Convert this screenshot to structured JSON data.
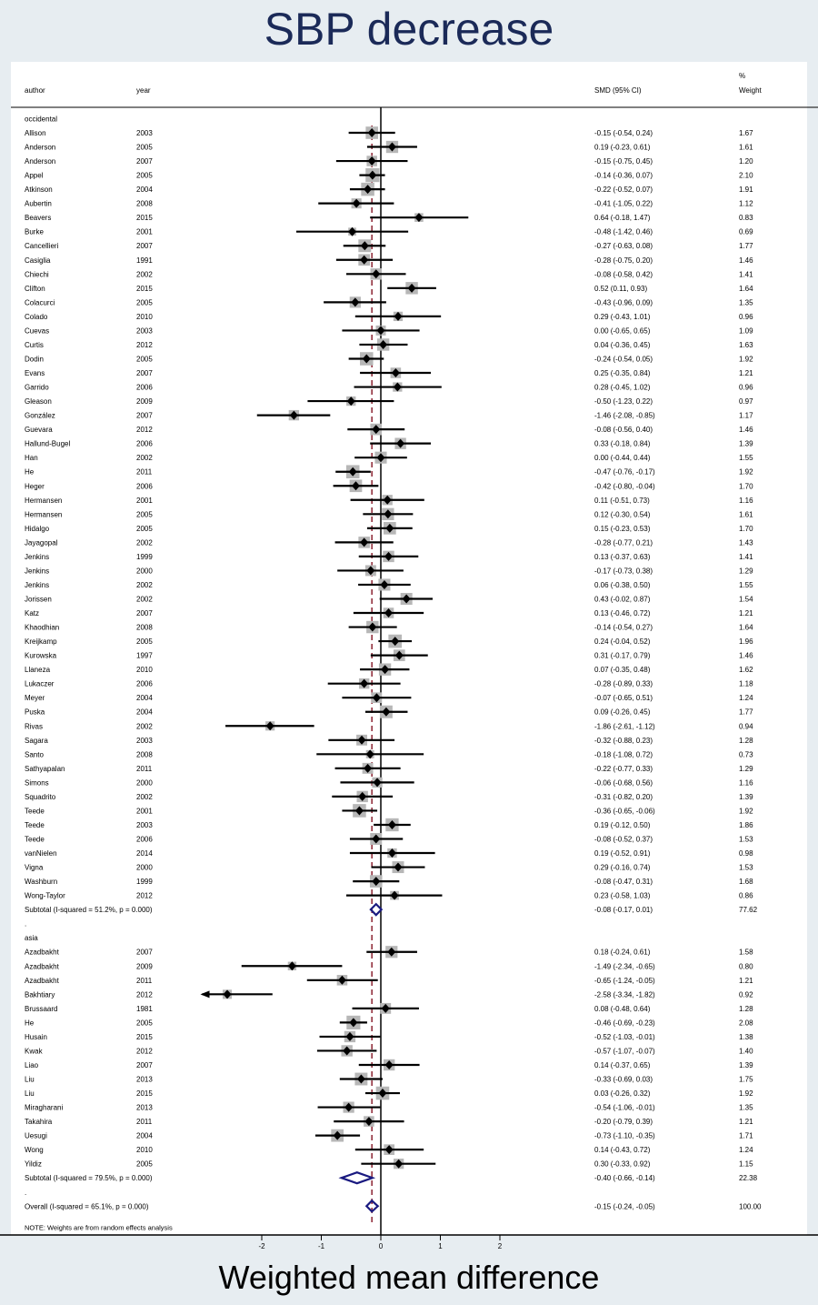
{
  "title": "SBP decrease",
  "xlabel": "Weighted mean difference",
  "header": {
    "author": "author",
    "year": "year",
    "ci": "SMD (95% CI)",
    "pct": "%",
    "weight": "Weight"
  },
  "note": "NOTE: Weights are from random effects analysis",
  "colors": {
    "background": "#e7edf1",
    "panel": "#ffffff",
    "box": "#b7b7b7",
    "diamond": "#1a1a80",
    "overall_line": "#8b2332",
    "text": "#000000"
  },
  "chart_data": {
    "type": "forest",
    "xlim": [
      -3,
      2
    ],
    "xticks": [
      -2,
      -1,
      0,
      1,
      2
    ],
    "xtick_labels": [
      "-2",
      "-1",
      "0",
      "1",
      "2"
    ],
    "null_line": 0,
    "overall_line": -0.15,
    "groups": [
      {
        "name": "occidental",
        "studies": [
          {
            "author": "Allison",
            "year": "2003",
            "est": -0.15,
            "lo": -0.54,
            "hi": 0.24,
            "ci": "-0.15 (-0.54, 0.24)",
            "weight": "1.67"
          },
          {
            "author": "Anderson",
            "year": "2005",
            "est": 0.19,
            "lo": -0.23,
            "hi": 0.61,
            "ci": "0.19 (-0.23, 0.61)",
            "weight": "1.61"
          },
          {
            "author": "Anderson",
            "year": "2007",
            "est": -0.15,
            "lo": -0.75,
            "hi": 0.45,
            "ci": "-0.15 (-0.75, 0.45)",
            "weight": "1.20"
          },
          {
            "author": "Appel",
            "year": "2005",
            "est": -0.14,
            "lo": -0.36,
            "hi": 0.07,
            "ci": "-0.14 (-0.36, 0.07)",
            "weight": "2.10"
          },
          {
            "author": "Atkinson",
            "year": "2004",
            "est": -0.22,
            "lo": -0.52,
            "hi": 0.07,
            "ci": "-0.22 (-0.52, 0.07)",
            "weight": "1.91"
          },
          {
            "author": "Aubertin",
            "year": "2008",
            "est": -0.41,
            "lo": -1.05,
            "hi": 0.22,
            "ci": "-0.41 (-1.05, 0.22)",
            "weight": "1.12"
          },
          {
            "author": "Beavers",
            "year": "2015",
            "est": 0.64,
            "lo": -0.18,
            "hi": 1.47,
            "ci": "0.64 (-0.18, 1.47)",
            "weight": "0.83"
          },
          {
            "author": "Burke",
            "year": "2001",
            "est": -0.48,
            "lo": -1.42,
            "hi": 0.46,
            "ci": "-0.48 (-1.42, 0.46)",
            "weight": "0.69"
          },
          {
            "author": "Cancellieri",
            "year": "2007",
            "est": -0.27,
            "lo": -0.63,
            "hi": 0.08,
            "ci": "-0.27 (-0.63, 0.08)",
            "weight": "1.77"
          },
          {
            "author": "Casiglia",
            "year": "1991",
            "est": -0.28,
            "lo": -0.75,
            "hi": 0.2,
            "ci": "-0.28 (-0.75, 0.20)",
            "weight": "1.46"
          },
          {
            "author": "Chiechi",
            "year": "2002",
            "est": -0.08,
            "lo": -0.58,
            "hi": 0.42,
            "ci": "-0.08 (-0.58, 0.42)",
            "weight": "1.41"
          },
          {
            "author": "Clifton",
            "year": "2015",
            "est": 0.52,
            "lo": 0.11,
            "hi": 0.93,
            "ci": "0.52 (0.11, 0.93)",
            "weight": "1.64"
          },
          {
            "author": "Colacurci",
            "year": "2005",
            "est": -0.43,
            "lo": -0.96,
            "hi": 0.09,
            "ci": "-0.43 (-0.96, 0.09)",
            "weight": "1.35"
          },
          {
            "author": "Colado",
            "year": "2010",
            "est": 0.29,
            "lo": -0.43,
            "hi": 1.01,
            "ci": "0.29 (-0.43, 1.01)",
            "weight": "0.96"
          },
          {
            "author": "Cuevas",
            "year": "2003",
            "est": 0.0,
            "lo": -0.65,
            "hi": 0.65,
            "ci": "0.00 (-0.65, 0.65)",
            "weight": "1.09"
          },
          {
            "author": "Curtis",
            "year": "2012",
            "est": 0.04,
            "lo": -0.36,
            "hi": 0.45,
            "ci": "0.04 (-0.36, 0.45)",
            "weight": "1.63"
          },
          {
            "author": "Dodin",
            "year": "2005",
            "est": -0.24,
            "lo": -0.54,
            "hi": 0.05,
            "ci": "-0.24 (-0.54, 0.05)",
            "weight": "1.92"
          },
          {
            "author": "Evans",
            "year": "2007",
            "est": 0.25,
            "lo": -0.35,
            "hi": 0.84,
            "ci": "0.25 (-0.35, 0.84)",
            "weight": "1.21"
          },
          {
            "author": "Garrido",
            "year": "2006",
            "est": 0.28,
            "lo": -0.45,
            "hi": 1.02,
            "ci": "0.28 (-0.45, 1.02)",
            "weight": "0.96"
          },
          {
            "author": "Gleason",
            "year": "2009",
            "est": -0.5,
            "lo": -1.23,
            "hi": 0.22,
            "ci": "-0.50 (-1.23, 0.22)",
            "weight": "0.97"
          },
          {
            "author": "González",
            "year": "2007",
            "est": -1.46,
            "lo": -2.08,
            "hi": -0.85,
            "ci": "-1.46 (-2.08, -0.85)",
            "weight": "1.17"
          },
          {
            "author": "Guevara",
            "year": "2012",
            "est": -0.08,
            "lo": -0.56,
            "hi": 0.4,
            "ci": "-0.08 (-0.56, 0.40)",
            "weight": "1.46"
          },
          {
            "author": "Hallund-Bugel",
            "year": "2006",
            "est": 0.33,
            "lo": -0.18,
            "hi": 0.84,
            "ci": "0.33 (-0.18, 0.84)",
            "weight": "1.39"
          },
          {
            "author": "Han",
            "year": "2002",
            "est": 0.0,
            "lo": -0.44,
            "hi": 0.44,
            "ci": "0.00 (-0.44, 0.44)",
            "weight": "1.55"
          },
          {
            "author": "He",
            "year": "2011",
            "est": -0.47,
            "lo": -0.76,
            "hi": -0.17,
            "ci": "-0.47 (-0.76, -0.17)",
            "weight": "1.92"
          },
          {
            "author": "Heger",
            "year": "2006",
            "est": -0.42,
            "lo": -0.8,
            "hi": -0.04,
            "ci": "-0.42 (-0.80, -0.04)",
            "weight": "1.70"
          },
          {
            "author": "Hermansen",
            "year": "2001",
            "est": 0.11,
            "lo": -0.51,
            "hi": 0.73,
            "ci": "0.11 (-0.51, 0.73)",
            "weight": "1.16"
          },
          {
            "author": "Hermansen",
            "year": "2005",
            "est": 0.12,
            "lo": -0.3,
            "hi": 0.54,
            "ci": "0.12 (-0.30, 0.54)",
            "weight": "1.61"
          },
          {
            "author": "Hidalgo",
            "year": "2005",
            "est": 0.15,
            "lo": -0.23,
            "hi": 0.53,
            "ci": "0.15 (-0.23, 0.53)",
            "weight": "1.70"
          },
          {
            "author": "Jayagopal",
            "year": "2002",
            "est": -0.28,
            "lo": -0.77,
            "hi": 0.21,
            "ci": "-0.28 (-0.77, 0.21)",
            "weight": "1.43"
          },
          {
            "author": "Jenkins",
            "year": "1999",
            "est": 0.13,
            "lo": -0.37,
            "hi": 0.63,
            "ci": "0.13 (-0.37, 0.63)",
            "weight": "1.41"
          },
          {
            "author": "Jenkins",
            "year": "2000",
            "est": -0.17,
            "lo": -0.73,
            "hi": 0.38,
            "ci": "-0.17 (-0.73, 0.38)",
            "weight": "1.29"
          },
          {
            "author": "Jenkins",
            "year": "2002",
            "est": 0.06,
            "lo": -0.38,
            "hi": 0.5,
            "ci": "0.06 (-0.38, 0.50)",
            "weight": "1.55"
          },
          {
            "author": "Jorissen",
            "year": "2002",
            "est": 0.43,
            "lo": -0.02,
            "hi": 0.87,
            "ci": "0.43 (-0.02, 0.87)",
            "weight": "1.54"
          },
          {
            "author": "Katz",
            "year": "2007",
            "est": 0.13,
            "lo": -0.46,
            "hi": 0.72,
            "ci": "0.13 (-0.46, 0.72)",
            "weight": "1.21"
          },
          {
            "author": "Khaodhian",
            "year": "2008",
            "est": -0.14,
            "lo": -0.54,
            "hi": 0.27,
            "ci": "-0.14 (-0.54, 0.27)",
            "weight": "1.64"
          },
          {
            "author": "Kreijkamp",
            "year": "2005",
            "est": 0.24,
            "lo": -0.04,
            "hi": 0.52,
            "ci": "0.24 (-0.04, 0.52)",
            "weight": "1.96"
          },
          {
            "author": "Kurowska",
            "year": "1997",
            "est": 0.31,
            "lo": -0.17,
            "hi": 0.79,
            "ci": "0.31 (-0.17, 0.79)",
            "weight": "1.46"
          },
          {
            "author": "Llaneza",
            "year": "2010",
            "est": 0.07,
            "lo": -0.35,
            "hi": 0.48,
            "ci": "0.07 (-0.35, 0.48)",
            "weight": "1.62"
          },
          {
            "author": "Lukaczer",
            "year": "2006",
            "est": -0.28,
            "lo": -0.89,
            "hi": 0.33,
            "ci": "-0.28 (-0.89, 0.33)",
            "weight": "1.18"
          },
          {
            "author": "Meyer",
            "year": "2004",
            "est": -0.07,
            "lo": -0.65,
            "hi": 0.51,
            "ci": "-0.07 (-0.65, 0.51)",
            "weight": "1.24"
          },
          {
            "author": "Puska",
            "year": "2004",
            "est": 0.09,
            "lo": -0.26,
            "hi": 0.45,
            "ci": "0.09 (-0.26, 0.45)",
            "weight": "1.77"
          },
          {
            "author": "Rivas",
            "year": "2002",
            "est": -1.86,
            "lo": -2.61,
            "hi": -1.12,
            "ci": "-1.86 (-2.61, -1.12)",
            "weight": "0.94"
          },
          {
            "author": "Sagara",
            "year": "2003",
            "est": -0.32,
            "lo": -0.88,
            "hi": 0.23,
            "ci": "-0.32 (-0.88, 0.23)",
            "weight": "1.28"
          },
          {
            "author": "Santo",
            "year": "2008",
            "est": -0.18,
            "lo": -1.08,
            "hi": 0.72,
            "ci": "-0.18 (-1.08, 0.72)",
            "weight": "0.73"
          },
          {
            "author": "Sathyapalan",
            "year": "2011",
            "est": -0.22,
            "lo": -0.77,
            "hi": 0.33,
            "ci": "-0.22 (-0.77, 0.33)",
            "weight": "1.29"
          },
          {
            "author": "Simons",
            "year": "2000",
            "est": -0.06,
            "lo": -0.68,
            "hi": 0.56,
            "ci": "-0.06 (-0.68, 0.56)",
            "weight": "1.16"
          },
          {
            "author": "Squadrito",
            "year": "2002",
            "est": -0.31,
            "lo": -0.82,
            "hi": 0.2,
            "ci": "-0.31 (-0.82, 0.20)",
            "weight": "1.39"
          },
          {
            "author": "Teede",
            "year": "2001",
            "est": -0.36,
            "lo": -0.65,
            "hi": -0.06,
            "ci": "-0.36 (-0.65, -0.06)",
            "weight": "1.92"
          },
          {
            "author": "Teede",
            "year": "2003",
            "est": 0.19,
            "lo": -0.12,
            "hi": 0.5,
            "ci": "0.19 (-0.12, 0.50)",
            "weight": "1.86"
          },
          {
            "author": "Teede",
            "year": "2006",
            "est": -0.08,
            "lo": -0.52,
            "hi": 0.37,
            "ci": "-0.08 (-0.52, 0.37)",
            "weight": "1.53"
          },
          {
            "author": "vanNielen",
            "year": "2014",
            "est": 0.19,
            "lo": -0.52,
            "hi": 0.91,
            "ci": "0.19 (-0.52, 0.91)",
            "weight": "0.98"
          },
          {
            "author": "Vigna",
            "year": "2000",
            "est": 0.29,
            "lo": -0.16,
            "hi": 0.74,
            "ci": "0.29 (-0.16, 0.74)",
            "weight": "1.53"
          },
          {
            "author": "Washburn",
            "year": "1999",
            "est": -0.08,
            "lo": -0.47,
            "hi": 0.31,
            "ci": "-0.08 (-0.47, 0.31)",
            "weight": "1.68"
          },
          {
            "author": "Wong-Taylor",
            "year": "2012",
            "est": 0.23,
            "lo": -0.58,
            "hi": 1.03,
            "ci": "0.23 (-0.58, 1.03)",
            "weight": "0.86"
          }
        ],
        "subtotal": {
          "label": "Subtotal  (I-squared = 51.2%, p = 0.000)",
          "est": -0.08,
          "lo": -0.17,
          "hi": 0.01,
          "ci": "-0.08 (-0.17, 0.01)",
          "weight": "77.62"
        }
      },
      {
        "name": "asia",
        "studies": [
          {
            "author": "Azadbakht",
            "year": "2007",
            "est": 0.18,
            "lo": -0.24,
            "hi": 0.61,
            "ci": "0.18 (-0.24, 0.61)",
            "weight": "1.58"
          },
          {
            "author": "Azadbakht",
            "year": "2009",
            "est": -1.49,
            "lo": -2.34,
            "hi": -0.65,
            "ci": "-1.49 (-2.34, -0.65)",
            "weight": "0.80"
          },
          {
            "author": "Azadbakht",
            "year": "2011",
            "est": -0.65,
            "lo": -1.24,
            "hi": -0.05,
            "ci": "-0.65 (-1.24, -0.05)",
            "weight": "1.21"
          },
          {
            "author": "Bakhtiary",
            "year": "2012",
            "est": -2.58,
            "lo": -3.34,
            "hi": -1.82,
            "ci": "-2.58 (-3.34, -1.82)",
            "weight": "0.92"
          },
          {
            "author": "Brussaard",
            "year": "1981",
            "est": 0.08,
            "lo": -0.48,
            "hi": 0.64,
            "ci": "0.08 (-0.48, 0.64)",
            "weight": "1.28"
          },
          {
            "author": "He",
            "year": "2005",
            "est": -0.46,
            "lo": -0.69,
            "hi": -0.23,
            "ci": "-0.46 (-0.69, -0.23)",
            "weight": "2.08"
          },
          {
            "author": "Husain",
            "year": "2015",
            "est": -0.52,
            "lo": -1.03,
            "hi": -0.01,
            "ci": "-0.52 (-1.03, -0.01)",
            "weight": "1.38"
          },
          {
            "author": "Kwak",
            "year": "2012",
            "est": -0.57,
            "lo": -1.07,
            "hi": -0.07,
            "ci": "-0.57 (-1.07, -0.07)",
            "weight": "1.40"
          },
          {
            "author": "Liao",
            "year": "2007",
            "est": 0.14,
            "lo": -0.37,
            "hi": 0.65,
            "ci": "0.14 (-0.37, 0.65)",
            "weight": "1.39"
          },
          {
            "author": "Liu",
            "year": "2013",
            "est": -0.33,
            "lo": -0.69,
            "hi": 0.03,
            "ci": "-0.33 (-0.69, 0.03)",
            "weight": "1.75"
          },
          {
            "author": "Liu",
            "year": "2015",
            "est": 0.03,
            "lo": -0.26,
            "hi": 0.32,
            "ci": "0.03 (-0.26, 0.32)",
            "weight": "1.92"
          },
          {
            "author": "Miragharani",
            "year": "2013",
            "est": -0.54,
            "lo": -1.06,
            "hi": -0.01,
            "ci": "-0.54 (-1.06, -0.01)",
            "weight": "1.35"
          },
          {
            "author": "Takahira",
            "year": "2011",
            "est": -0.2,
            "lo": -0.79,
            "hi": 0.39,
            "ci": "-0.20 (-0.79, 0.39)",
            "weight": "1.21"
          },
          {
            "author": "Uesugi",
            "year": "2004",
            "est": -0.73,
            "lo": -1.1,
            "hi": -0.35,
            "ci": "-0.73 (-1.10, -0.35)",
            "weight": "1.71"
          },
          {
            "author": "Wong",
            "year": "2010",
            "est": 0.14,
            "lo": -0.43,
            "hi": 0.72,
            "ci": "0.14 (-0.43, 0.72)",
            "weight": "1.24"
          },
          {
            "author": "Yildiz",
            "year": "2005",
            "est": 0.3,
            "lo": -0.33,
            "hi": 0.92,
            "ci": "0.30 (-0.33, 0.92)",
            "weight": "1.15"
          }
        ],
        "subtotal": {
          "label": "Subtotal  (I-squared = 79.5%, p = 0.000)",
          "est": -0.4,
          "lo": -0.66,
          "hi": -0.14,
          "ci": "-0.40 (-0.66, -0.14)",
          "weight": "22.38"
        }
      }
    ],
    "overall": {
      "label": "Overall  (I-squared = 65.1%, p = 0.000)",
      "est": -0.15,
      "lo": -0.24,
      "hi": -0.05,
      "ci": "-0.15 (-0.24, -0.05)",
      "weight": "100.00"
    }
  }
}
